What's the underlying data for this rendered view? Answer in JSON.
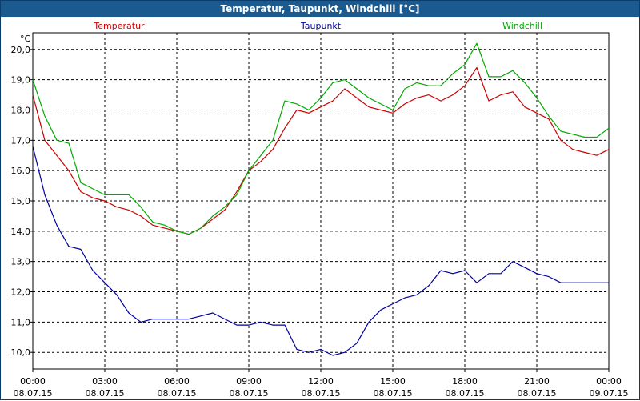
{
  "window": {
    "title": "Temperatur, Taupunkt, Windchill [°C]"
  },
  "chart_data": {
    "type": "line",
    "title": "Temperatur, Taupunkt, Windchill [°C]",
    "ylabel": "°C",
    "ylim": [
      9.45,
      20.55
    ],
    "y_ticks": [
      "10,0",
      "11,0",
      "12,0",
      "13,0",
      "14,0",
      "15,0",
      "16,0",
      "17,0",
      "18,0",
      "19,0",
      "20,0"
    ],
    "x_ticks": [
      {
        "time": "00:00",
        "date": "08.07.15"
      },
      {
        "time": "03:00",
        "date": "08.07.15"
      },
      {
        "time": "06:00",
        "date": "08.07.15"
      },
      {
        "time": "09:00",
        "date": "08.07.15"
      },
      {
        "time": "12:00",
        "date": "08.07.15"
      },
      {
        "time": "15:00",
        "date": "08.07.15"
      },
      {
        "time": "18:00",
        "date": "08.07.15"
      },
      {
        "time": "21:00",
        "date": "08.07.15"
      },
      {
        "time": "00:00",
        "date": "09.07.15"
      }
    ],
    "x_hours": [
      0,
      0.5,
      1,
      1.5,
      2,
      2.5,
      3,
      3.5,
      4,
      4.5,
      5,
      5.5,
      6,
      6.5,
      7,
      7.5,
      8,
      8.5,
      9,
      9.5,
      10,
      10.5,
      11,
      11.5,
      12,
      12.5,
      13,
      13.5,
      14,
      14.5,
      15,
      15.5,
      16,
      16.5,
      17,
      17.5,
      18,
      18.5,
      19,
      19.5,
      20,
      20.5,
      21,
      21.5,
      22,
      22.5,
      23,
      23.5,
      24
    ],
    "grid": true,
    "legend_position": "top",
    "series": [
      {
        "name": "Temperatur",
        "color": "#cc0000",
        "values": [
          18.5,
          17.0,
          16.5,
          16.0,
          15.3,
          15.1,
          15.0,
          14.8,
          14.7,
          14.5,
          14.2,
          14.1,
          14.0,
          13.9,
          14.1,
          14.4,
          14.7,
          15.3,
          16.0,
          16.3,
          16.7,
          17.4,
          18.0,
          17.9,
          18.1,
          18.3,
          18.7,
          18.4,
          18.1,
          18.0,
          17.9,
          18.2,
          18.4,
          18.5,
          18.3,
          18.5,
          18.8,
          19.4,
          18.3,
          18.5,
          18.6,
          18.1,
          17.9,
          17.7,
          17.0,
          16.7,
          16.6,
          16.5,
          16.7
        ]
      },
      {
        "name": "Taupunkt",
        "color": "#00009c",
        "values": [
          16.8,
          15.2,
          14.2,
          13.5,
          13.4,
          12.7,
          12.3,
          11.9,
          11.3,
          11.0,
          11.1,
          11.1,
          11.1,
          11.1,
          11.2,
          11.3,
          11.1,
          10.9,
          10.9,
          11.0,
          10.9,
          10.9,
          10.1,
          10.0,
          10.1,
          9.9,
          10.0,
          10.3,
          11.0,
          11.4,
          11.6,
          11.8,
          11.9,
          12.2,
          12.7,
          12.6,
          12.7,
          12.3,
          12.6,
          12.6,
          13.0,
          12.8,
          12.6,
          12.5,
          12.3,
          12.3,
          12.3,
          12.3,
          12.3
        ]
      },
      {
        "name": "Windchill",
        "color": "#00aa00",
        "values": [
          19.0,
          17.8,
          17.0,
          16.9,
          15.6,
          15.4,
          15.2,
          15.2,
          15.2,
          14.8,
          14.3,
          14.2,
          14.0,
          13.9,
          14.1,
          14.5,
          14.8,
          15.2,
          16.0,
          16.5,
          17.0,
          18.3,
          18.2,
          18.0,
          18.4,
          18.9,
          19.0,
          18.7,
          18.4,
          18.2,
          18.0,
          18.7,
          18.9,
          18.8,
          18.8,
          19.2,
          19.5,
          20.2,
          19.1,
          19.1,
          19.3,
          18.9,
          18.4,
          17.8,
          17.3,
          17.2,
          17.1,
          17.1,
          17.4
        ]
      }
    ]
  }
}
